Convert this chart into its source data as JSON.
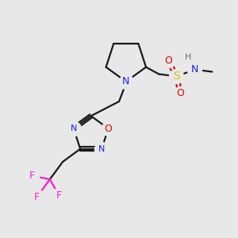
{
  "bg_color": "#e8e8e8",
  "bond_color": "#1a1a1a",
  "N_color": "#2020dd",
  "O_color": "#dd0000",
  "S_color": "#cccc00",
  "F_color": "#ee22cc",
  "H_color": "#607080",
  "line_width": 1.6,
  "figsize": [
    3.0,
    3.0
  ],
  "dpi": 100,
  "xlim": [
    0,
    10
  ],
  "ylim": [
    0,
    10
  ]
}
